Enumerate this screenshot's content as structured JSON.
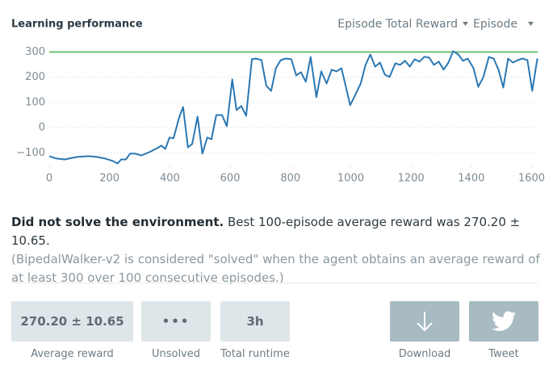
{
  "header": {
    "title": "Learning performance",
    "metric_select": "Episode Total Reward",
    "axis_select": "Episode"
  },
  "chart_data": {
    "type": "line",
    "x": [
      0,
      24,
      51,
      91,
      131,
      158,
      185,
      211,
      227,
      238,
      254,
      268,
      286,
      305,
      332,
      359,
      372,
      385,
      399,
      412,
      431,
      444,
      460,
      474,
      492,
      508,
      524,
      538,
      554,
      573,
      589,
      607,
      621,
      637,
      653,
      672,
      685,
      704,
      720,
      736,
      752,
      768,
      784,
      803,
      819,
      835,
      851,
      867,
      886,
      902,
      920,
      937,
      953,
      969,
      982,
      998,
      1014,
      1033,
      1049,
      1065,
      1081,
      1097,
      1113,
      1129,
      1148,
      1164,
      1180,
      1196,
      1212,
      1228,
      1244,
      1260,
      1276,
      1292,
      1308,
      1324,
      1340,
      1357,
      1372,
      1388,
      1407,
      1423,
      1440,
      1458,
      1474,
      1490,
      1506,
      1522,
      1538,
      1554,
      1570,
      1586,
      1602,
      1619
    ],
    "values": [
      -113,
      -122,
      -126,
      -116,
      -113,
      -116,
      -122,
      -132,
      -142,
      -126,
      -126,
      -103,
      -103,
      -110,
      -97,
      -81,
      -71,
      -84,
      -39,
      -42,
      41,
      82,
      -78,
      -65,
      44,
      -103,
      -39,
      -46,
      50,
      50,
      6,
      191,
      70,
      86,
      47,
      271,
      274,
      268,
      166,
      146,
      236,
      268,
      274,
      271,
      207,
      220,
      182,
      280,
      121,
      223,
      175,
      230,
      223,
      236,
      172,
      89,
      127,
      175,
      249,
      290,
      242,
      258,
      210,
      201,
      255,
      249,
      265,
      242,
      271,
      262,
      281,
      278,
      249,
      262,
      230,
      258,
      303,
      290,
      265,
      274,
      236,
      162,
      201,
      280,
      274,
      230,
      159,
      274,
      258,
      268,
      274,
      268,
      146,
      274
    ],
    "color": "#2a78b4",
    "threshold": {
      "value": 300,
      "color": "#4cb24c"
    },
    "xlim": [
      0,
      1620
    ],
    "ylim": [
      -150,
      330
    ],
    "xticks": [
      0,
      200,
      400,
      600,
      800,
      1000,
      1200,
      1400,
      1600
    ],
    "yticks": [
      {
        "value": -100,
        "label": "−100"
      },
      0,
      100,
      200,
      300
    ],
    "grid": true
  },
  "summary": {
    "headline": "Did not solve the environment.",
    "text": "Best 100-episode average reward was 270.20 ± 10.65.",
    "note": "(BipedalWalker-v2 is considered \"solved\" when the agent obtains an average reward of at least 300 over 100 consecutive episodes.)"
  },
  "stats": [
    {
      "value": "270.20 ± 10.65",
      "label": "Average reward"
    },
    {
      "value": "•••",
      "label": "Unsolved"
    },
    {
      "value": "3h",
      "label": "Total runtime"
    }
  ],
  "buttons": [
    {
      "label": "Download"
    },
    {
      "label": "Tweet"
    }
  ]
}
